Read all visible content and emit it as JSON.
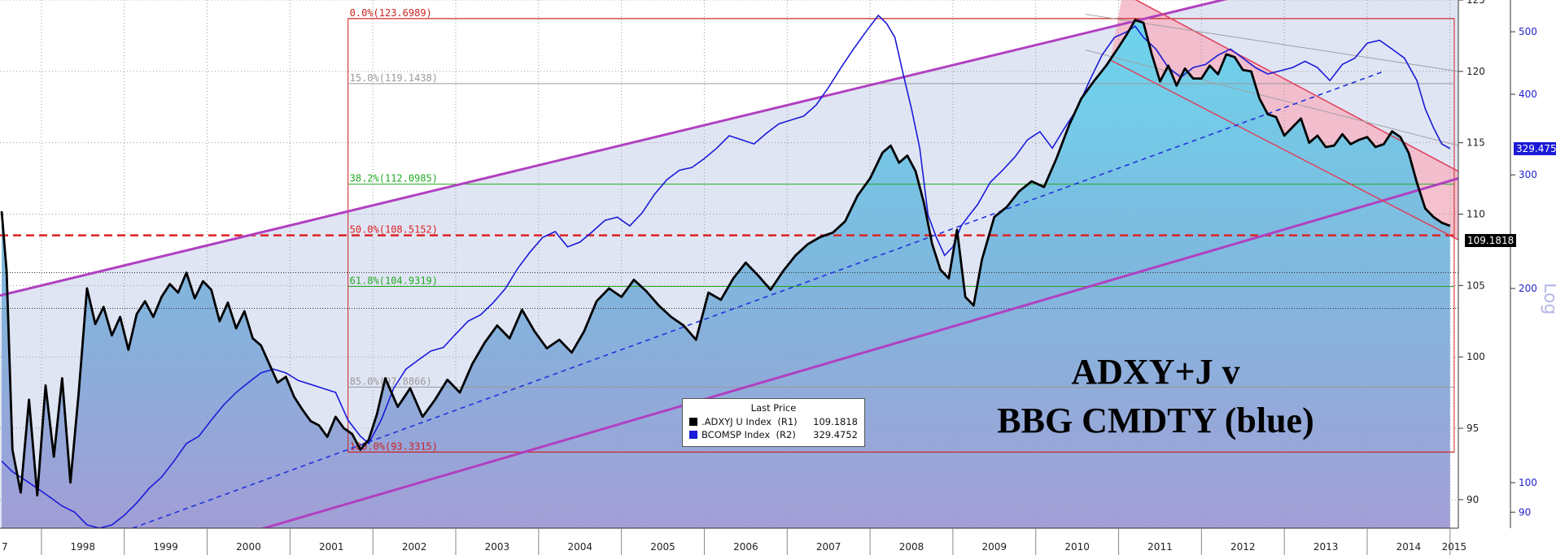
{
  "chart_data": {
    "type": "line",
    "title": "ADXY+J v BBG CMDTY (blue)",
    "title_lines": [
      "ADXY+J v",
      "BBG CMDTY (blue)"
    ],
    "x_axis": {
      "categories": [
        "1998",
        "1999",
        "2000",
        "2001",
        "2002",
        "2003",
        "2004",
        "2005",
        "2006",
        "2007",
        "2008",
        "2009",
        "2010",
        "2011",
        "2012",
        "2013",
        "2014",
        "2015"
      ],
      "range": [
        1997.5,
        2015.1
      ],
      "partial_left_label": "7"
    },
    "right_axis_R1": {
      "ticks": [
        "90",
        "95",
        "100",
        "105",
        "110",
        "115",
        "120",
        "125"
      ],
      "range": [
        88,
        125
      ]
    },
    "right_axis_R2": {
      "scale": "log",
      "label": "Log",
      "ticks": [
        "90",
        "100",
        "200",
        "300",
        "400",
        "500"
      ],
      "range": [
        85,
        560
      ]
    },
    "series": [
      {
        "name": ".ADXYJ U Index  (R1)",
        "axis": "R1",
        "color": "#000000",
        "last_value": "109.1818",
        "x": [
          1997.52,
          1997.58,
          1997.65,
          1997.75,
          1997.85,
          1997.95,
          1998.05,
          1998.15,
          1998.25,
          1998.35,
          1998.45,
          1998.55,
          1998.65,
          1998.75,
          1998.85,
          1998.95,
          1999.05,
          1999.15,
          1999.25,
          1999.35,
          1999.45,
          1999.55,
          1999.65,
          1999.75,
          1999.85,
          1999.95,
          2000.05,
          2000.15,
          2000.25,
          2000.35,
          2000.45,
          2000.55,
          2000.65,
          2000.75,
          2000.85,
          2000.95,
          2001.05,
          2001.15,
          2001.25,
          2001.35,
          2001.45,
          2001.55,
          2001.65,
          2001.75,
          2001.85,
          2001.95,
          2002.05,
          2002.15,
          2002.3,
          2002.45,
          2002.6,
          2002.75,
          2002.9,
          2003.05,
          2003.2,
          2003.35,
          2003.5,
          2003.65,
          2003.8,
          2003.95,
          2004.1,
          2004.25,
          2004.4,
          2004.55,
          2004.7,
          2004.85,
          2005.0,
          2005.15,
          2005.3,
          2005.45,
          2005.6,
          2005.75,
          2005.9,
          2006.05,
          2006.2,
          2006.35,
          2006.5,
          2006.65,
          2006.8,
          2006.95,
          2007.1,
          2007.25,
          2007.4,
          2007.55,
          2007.7,
          2007.85,
          2008.0,
          2008.15,
          2008.25,
          2008.35,
          2008.45,
          2008.55,
          2008.65,
          2008.75,
          2008.85,
          2008.95,
          2009.05,
          2009.15,
          2009.25,
          2009.35,
          2009.5,
          2009.65,
          2009.8,
          2009.95,
          2010.1,
          2010.25,
          2010.4,
          2010.55,
          2010.7,
          2010.85,
          2011.0,
          2011.1,
          2011.2,
          2011.3,
          2011.4,
          2011.5,
          2011.6,
          2011.7,
          2011.8,
          2011.9,
          2012.0,
          2012.1,
          2012.2,
          2012.3,
          2012.4,
          2012.5,
          2012.6,
          2012.7,
          2012.8,
          2012.9,
          2013.0,
          2013.1,
          2013.2,
          2013.3,
          2013.4,
          2013.5,
          2013.6,
          2013.7,
          2013.8,
          2013.9,
          2014.0,
          2014.1,
          2014.2,
          2014.3,
          2014.4,
          2014.5,
          2014.6,
          2014.7,
          2014.8,
          2014.9,
          2015.0
        ],
        "y": [
          110.2,
          106.0,
          93.5,
          90.5,
          97.0,
          90.3,
          98.0,
          93.0,
          98.5,
          91.2,
          97.5,
          104.8,
          102.3,
          103.5,
          101.5,
          102.8,
          100.5,
          103.0,
          103.9,
          102.8,
          104.2,
          105.1,
          104.5,
          105.9,
          104.1,
          105.3,
          104.7,
          102.5,
          103.8,
          102.0,
          103.2,
          101.3,
          100.8,
          99.5,
          98.2,
          98.6,
          97.2,
          96.3,
          95.5,
          95.2,
          94.4,
          95.8,
          95.0,
          94.6,
          93.5,
          94.2,
          96.0,
          98.5,
          96.5,
          97.8,
          95.8,
          97.0,
          98.4,
          97.5,
          99.5,
          101.0,
          102.2,
          101.3,
          103.3,
          101.8,
          100.6,
          101.2,
          100.3,
          101.8,
          103.9,
          104.8,
          104.2,
          105.4,
          104.6,
          103.6,
          102.8,
          102.2,
          101.2,
          104.5,
          104.0,
          105.5,
          106.6,
          105.7,
          104.7,
          106.0,
          107.1,
          107.9,
          108.4,
          108.7,
          109.5,
          111.3,
          112.5,
          114.3,
          114.8,
          113.6,
          114.1,
          113.0,
          110.8,
          107.9,
          106.1,
          105.5,
          108.9,
          104.2,
          103.6,
          106.8,
          109.8,
          110.5,
          111.6,
          112.3,
          111.9,
          113.9,
          116.2,
          118.1,
          119.3,
          120.4,
          121.7,
          122.6,
          123.6,
          123.4,
          121.2,
          119.3,
          120.4,
          119.0,
          120.2,
          119.5,
          119.5,
          120.4,
          119.8,
          121.2,
          121.0,
          120.1,
          120.0,
          118.1,
          117.0,
          116.8,
          115.5,
          116.1,
          116.7,
          115.0,
          115.5,
          114.7,
          114.8,
          115.6,
          114.9,
          115.2,
          115.4,
          114.7,
          114.9,
          115.8,
          115.4,
          114.3,
          112.2,
          110.4,
          109.8,
          109.4,
          109.18
        ]
      },
      {
        "name": "BCOMSP Index  (R2)",
        "axis": "R2",
        "color": "#1a1ad8",
        "last_value": "329.4752",
        "x": [
          1997.52,
          1997.65,
          1997.8,
          1997.95,
          1998.1,
          1998.25,
          1998.4,
          1998.55,
          1998.7,
          1998.85,
          1999.0,
          1999.15,
          1999.3,
          1999.45,
          1999.6,
          1999.75,
          1999.9,
          2000.05,
          2000.2,
          2000.35,
          2000.5,
          2000.65,
          2000.8,
          2000.95,
          2001.1,
          2001.25,
          2001.4,
          2001.55,
          2001.7,
          2001.85,
          2001.95,
          2002.1,
          2002.25,
          2002.4,
          2002.55,
          2002.7,
          2002.85,
          2003.0,
          2003.15,
          2003.3,
          2003.45,
          2003.6,
          2003.75,
          2003.9,
          2004.05,
          2004.2,
          2004.35,
          2004.5,
          2004.65,
          2004.8,
          2004.95,
          2005.1,
          2005.25,
          2005.4,
          2005.55,
          2005.7,
          2005.85,
          2006.0,
          2006.15,
          2006.3,
          2006.45,
          2006.6,
          2006.75,
          2006.9,
          2007.05,
          2007.2,
          2007.35,
          2007.5,
          2007.65,
          2007.8,
          2007.95,
          2008.1,
          2008.2,
          2008.3,
          2008.4,
          2008.5,
          2008.6,
          2008.7,
          2008.8,
          2008.9,
          2009.0,
          2009.1,
          2009.2,
          2009.3,
          2009.45,
          2009.6,
          2009.75,
          2009.9,
          2010.05,
          2010.2,
          2010.35,
          2010.5,
          2010.65,
          2010.8,
          2010.95,
          2011.1,
          2011.2,
          2011.3,
          2011.45,
          2011.6,
          2011.75,
          2011.9,
          2012.05,
          2012.2,
          2012.35,
          2012.5,
          2012.65,
          2012.8,
          2012.95,
          2013.1,
          2013.25,
          2013.4,
          2013.55,
          2013.7,
          2013.85,
          2014.0,
          2014.15,
          2014.3,
          2014.45,
          2014.6,
          2014.7,
          2014.8,
          2014.9,
          2015.0
        ],
        "y": [
          108,
          104,
          101,
          98,
          95,
          92,
          90,
          86,
          85,
          86,
          89,
          93,
          98,
          102,
          108,
          115,
          118,
          125,
          132,
          138,
          143,
          148,
          150,
          148,
          144,
          142,
          140,
          138,
          125,
          118,
          115,
          125,
          140,
          150,
          155,
          160,
          162,
          170,
          178,
          182,
          190,
          200,
          215,
          228,
          240,
          245,
          232,
          236,
          245,
          255,
          258,
          250,
          262,
          280,
          295,
          305,
          308,
          318,
          330,
          345,
          340,
          335,
          348,
          360,
          365,
          370,
          385,
          410,
          440,
          470,
          500,
          530,
          515,
          490,
          430,
          380,
          330,
          260,
          240,
          225,
          232,
          250,
          260,
          270,
          292,
          305,
          320,
          340,
          350,
          330,
          355,
          380,
          420,
          460,
          490,
          500,
          510,
          490,
          470,
          440,
          425,
          440,
          445,
          460,
          470,
          455,
          440,
          430,
          435,
          440,
          450,
          440,
          420,
          445,
          455,
          480,
          485,
          470,
          455,
          420,
          380,
          355,
          335,
          329.48
        ]
      }
    ],
    "fibonacci_retracement": [
      {
        "label": "0.0%(123.6989)",
        "value": 123.6989,
        "color": "#cc2222"
      },
      {
        "label": "15.0%(119.1438)",
        "value": 119.1438,
        "color": "#999999"
      },
      {
        "label": "38.2%(112.0985)",
        "value": 112.0985,
        "color": "#22aa22"
      },
      {
        "label": "50.0%(108.5152)",
        "value": 108.5152,
        "color": "#dd2222"
      },
      {
        "label": "61.8%(104.9319)",
        "value": 104.9319,
        "color": "#22aa22"
      },
      {
        "label": "85.0%(97.8866)",
        "value": 97.8866,
        "color": "#999999"
      },
      {
        "label": "100.0%(93.3315)",
        "value": 93.3315,
        "color": "#cc2222"
      }
    ],
    "legend": {
      "title": "Last Price",
      "placement": "bottom-center",
      "items": [
        {
          "name": ".ADXYJ U Index  (R1)",
          "value": "109.1818",
          "color": "#000000"
        },
        {
          "name": "BCOMSP Index  (R2)",
          "value": "329.4752",
          "color": "#1a1ad8"
        }
      ]
    },
    "grid": true
  }
}
